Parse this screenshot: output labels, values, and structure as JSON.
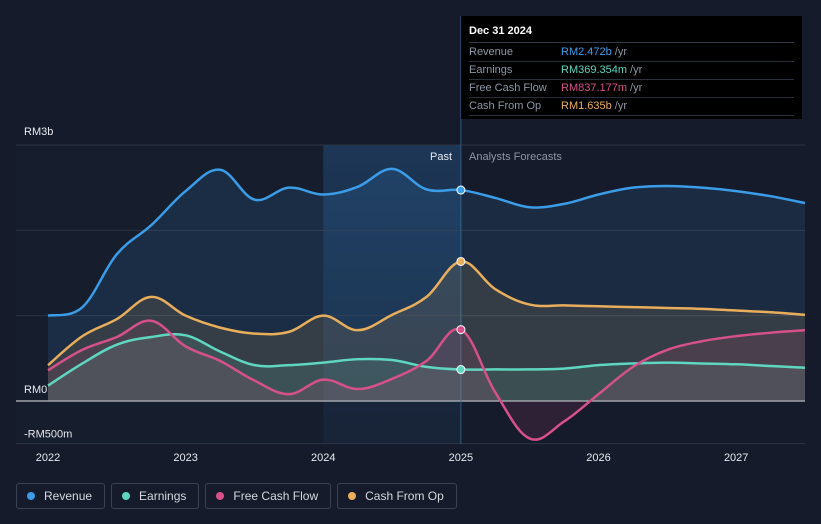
{
  "tooltip": {
    "date": "Dec 31 2024",
    "rows": [
      {
        "label": "Revenue",
        "value": "RM2.472b",
        "unit": "/yr",
        "color": "#3b9ce8"
      },
      {
        "label": "Earnings",
        "value": "RM369.354m",
        "unit": "/yr",
        "color": "#5fd6c0"
      },
      {
        "label": "Free Cash Flow",
        "value": "RM837.177m",
        "unit": "/yr",
        "color": "#d6518a"
      },
      {
        "label": "Cash From Op",
        "value": "RM1.635b",
        "unit": "/yr",
        "color": "#e8ae5c"
      }
    ]
  },
  "legend": [
    {
      "label": "Revenue",
      "color": "#3b9ce8"
    },
    {
      "label": "Earnings",
      "color": "#5fd6c0"
    },
    {
      "label": "Free Cash Flow",
      "color": "#d6518a"
    },
    {
      "label": "Cash From Op",
      "color": "#e8ae5c"
    }
  ],
  "chart_data": {
    "type": "line",
    "title": "",
    "y_tick_labels": [
      {
        "value": 3000,
        "label": "RM3b"
      },
      {
        "value": 0,
        "label": "RM0"
      },
      {
        "value": -500,
        "label": "-RM500m"
      }
    ],
    "ylim": [
      -500,
      3000
    ],
    "xlim": [
      2022,
      2027.5
    ],
    "x_ticks": [
      2022,
      2023,
      2024,
      2025,
      2026,
      2027
    ],
    "x_tick_labels": [
      "2022",
      "2023",
      "2024",
      "2025",
      "2026",
      "2027"
    ],
    "divider_x": 2025,
    "highlight_range": [
      2024,
      2025
    ],
    "past_label": "Past",
    "forecast_label": "Analysts Forecasts",
    "marker_x": 2025,
    "series": [
      {
        "name": "Revenue",
        "color": "#3b9ce8",
        "points": [
          [
            2022,
            1000
          ],
          [
            2022.25,
            1100
          ],
          [
            2022.5,
            1720
          ],
          [
            2022.75,
            2060
          ],
          [
            2023,
            2460
          ],
          [
            2023.25,
            2710
          ],
          [
            2023.5,
            2360
          ],
          [
            2023.75,
            2500
          ],
          [
            2024,
            2420
          ],
          [
            2024.25,
            2510
          ],
          [
            2024.5,
            2720
          ],
          [
            2024.75,
            2480
          ],
          [
            2025,
            2472
          ],
          [
            2025.25,
            2380
          ],
          [
            2025.5,
            2270
          ],
          [
            2025.75,
            2310
          ],
          [
            2026,
            2420
          ],
          [
            2026.25,
            2500
          ],
          [
            2026.5,
            2520
          ],
          [
            2026.75,
            2500
          ],
          [
            2027,
            2460
          ],
          [
            2027.25,
            2400
          ],
          [
            2027.5,
            2320
          ]
        ]
      },
      {
        "name": "Earnings",
        "color": "#5fd6c0",
        "points": [
          [
            2022,
            180
          ],
          [
            2022.25,
            440
          ],
          [
            2022.5,
            660
          ],
          [
            2022.75,
            750
          ],
          [
            2023,
            770
          ],
          [
            2023.25,
            580
          ],
          [
            2023.5,
            420
          ],
          [
            2023.75,
            420
          ],
          [
            2024,
            450
          ],
          [
            2024.25,
            490
          ],
          [
            2024.5,
            480
          ],
          [
            2024.75,
            400
          ],
          [
            2025,
            369
          ],
          [
            2025.25,
            370
          ],
          [
            2025.5,
            370
          ],
          [
            2025.75,
            380
          ],
          [
            2026,
            420
          ],
          [
            2026.25,
            440
          ],
          [
            2026.5,
            450
          ],
          [
            2026.75,
            440
          ],
          [
            2027,
            430
          ],
          [
            2027.25,
            410
          ],
          [
            2027.5,
            390
          ]
        ]
      },
      {
        "name": "Free Cash Flow",
        "color": "#d6518a",
        "points": [
          [
            2022,
            360
          ],
          [
            2022.25,
            600
          ],
          [
            2022.5,
            750
          ],
          [
            2022.75,
            940
          ],
          [
            2023,
            640
          ],
          [
            2023.25,
            470
          ],
          [
            2023.5,
            240
          ],
          [
            2023.75,
            80
          ],
          [
            2024,
            250
          ],
          [
            2024.25,
            140
          ],
          [
            2024.5,
            260
          ],
          [
            2024.75,
            470
          ],
          [
            2025,
            837
          ],
          [
            2025.25,
            100
          ],
          [
            2025.5,
            -440
          ],
          [
            2025.75,
            -240
          ],
          [
            2026,
            80
          ],
          [
            2026.25,
            400
          ],
          [
            2026.5,
            600
          ],
          [
            2026.75,
            700
          ],
          [
            2027,
            760
          ],
          [
            2027.25,
            800
          ],
          [
            2027.5,
            830
          ]
        ]
      },
      {
        "name": "Cash From Op",
        "color": "#e8ae5c",
        "points": [
          [
            2022,
            420
          ],
          [
            2022.25,
            760
          ],
          [
            2022.5,
            960
          ],
          [
            2022.75,
            1220
          ],
          [
            2023,
            1000
          ],
          [
            2023.25,
            860
          ],
          [
            2023.5,
            790
          ],
          [
            2023.75,
            810
          ],
          [
            2024,
            1000
          ],
          [
            2024.25,
            830
          ],
          [
            2024.5,
            1010
          ],
          [
            2024.75,
            1220
          ],
          [
            2025,
            1635
          ],
          [
            2025.25,
            1310
          ],
          [
            2025.5,
            1130
          ],
          [
            2025.75,
            1120
          ],
          [
            2026,
            1110
          ],
          [
            2026.25,
            1100
          ],
          [
            2026.5,
            1090
          ],
          [
            2026.75,
            1080
          ],
          [
            2027,
            1060
          ],
          [
            2027.25,
            1040
          ],
          [
            2027.5,
            1010
          ]
        ]
      }
    ]
  }
}
